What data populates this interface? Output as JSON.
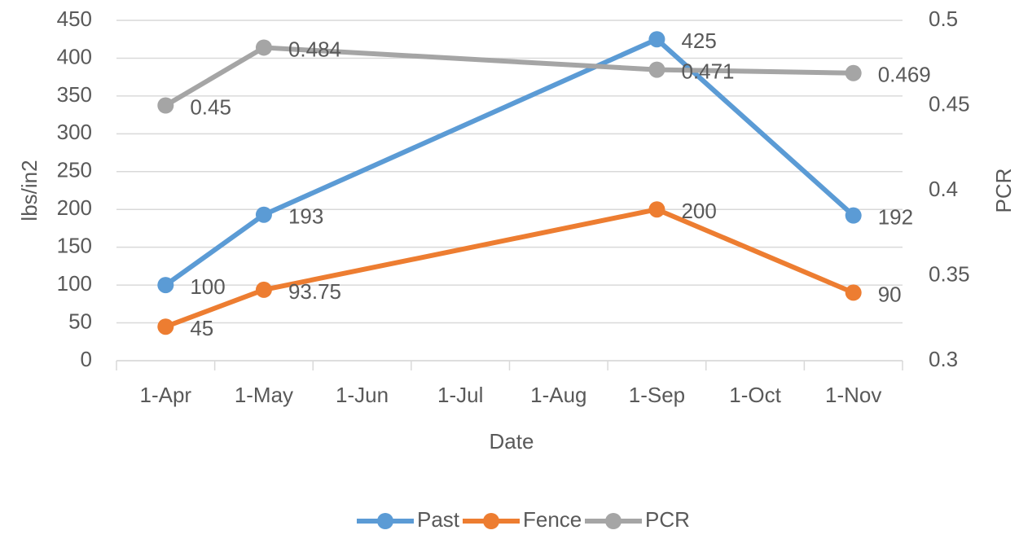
{
  "chart_data": {
    "type": "line",
    "xlabel": "Date",
    "ylabel": "lbs/in2",
    "y2label": "PCR",
    "xticks": [
      "1-Apr",
      "1-May",
      "1-Jun",
      "1-Jul",
      "1-Aug",
      "1-Sep",
      "1-Oct",
      "1-Nov"
    ],
    "x": [
      "1-Apr",
      "1-May",
      "1-Sep",
      "1-Nov"
    ],
    "series": [
      {
        "name": "Past",
        "color": "#5b9bd5",
        "values": [
          100,
          193,
          425,
          192
        ]
      },
      {
        "name": "Fence",
        "color": "#ed7d31",
        "values": [
          45,
          93.75,
          200,
          90
        ]
      },
      {
        "name": "PCR",
        "color": "#a5a5a5",
        "axis": "y2",
        "values": [
          0.45,
          0.484,
          0.471,
          0.469
        ]
      }
    ],
    "ylim": [
      0,
      450
    ],
    "yticks": [
      0,
      50,
      100,
      150,
      200,
      250,
      300,
      350,
      400,
      450
    ],
    "y2lim": [
      0.3,
      0.5
    ],
    "y2ticks": [
      0.3,
      0.35,
      0.4,
      0.45,
      0.5
    ],
    "grid": true,
    "legend": "bottom"
  }
}
